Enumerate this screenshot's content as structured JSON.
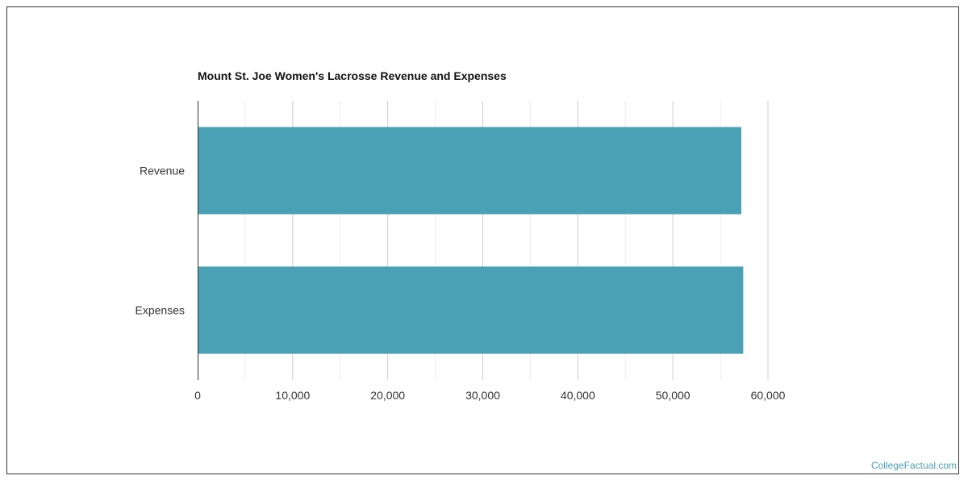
{
  "chart_data": {
    "type": "bar",
    "orientation": "horizontal",
    "title": "Mount St. Joe Women's Lacrosse Revenue and Expenses",
    "categories": [
      "Revenue",
      "Expenses"
    ],
    "values": [
      57200,
      57400
    ],
    "xlim": [
      0,
      60000
    ],
    "x_ticks": [
      0,
      10000,
      20000,
      30000,
      40000,
      50000,
      60000
    ],
    "x_tick_labels": [
      "0",
      "10,000",
      "20,000",
      "30,000",
      "40,000",
      "50,000",
      "60,000"
    ],
    "xlabel": "",
    "ylabel": "",
    "grid": true,
    "bar_color": "#4aa0b5"
  },
  "watermark": "CollegeFactual.com"
}
